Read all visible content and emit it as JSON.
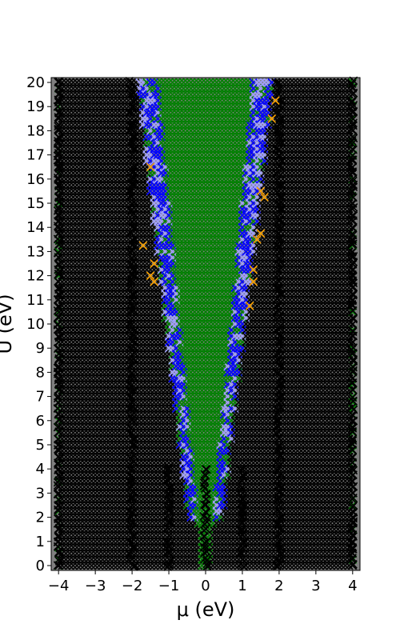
{
  "chart_data": {
    "type": "scatter",
    "xlabel": "μ (eV)",
    "ylabel": "U (eV)",
    "xlim": [
      -4.2,
      4.2
    ],
    "ylim": [
      -0.2,
      20.2
    ],
    "x_ticks": [
      -4,
      -3,
      -2,
      -1,
      0,
      1,
      2,
      3,
      4
    ],
    "y_ticks": [
      0,
      1,
      2,
      3,
      4,
      5,
      6,
      7,
      8,
      9,
      10,
      11,
      12,
      13,
      14,
      15,
      16,
      17,
      18,
      19,
      20
    ],
    "x_tick_labels": [
      "−4",
      "−3",
      "−2",
      "−1",
      "0",
      "1",
      "2",
      "3",
      "4"
    ],
    "y_tick_labels": [
      "0",
      "1",
      "2",
      "3",
      "4",
      "5",
      "6",
      "7",
      "8",
      "9",
      "10",
      "11",
      "12",
      "13",
      "14",
      "15",
      "16",
      "17",
      "18",
      "19",
      "20"
    ],
    "marker": "x",
    "grid": {
      "x_step": 0.1,
      "y_step": 0.25
    },
    "background_color": "#808080",
    "colors": {
      "black": "#000000",
      "blue": "#0000ff",
      "green": "#008000",
      "orange": "#ffa500",
      "light": "#a0a0ff"
    },
    "regions": {
      "green_band": {
        "U": [
          0,
          20
        ],
        "mu_center": 0.0,
        "half_width_at_U0": 0.1,
        "half_width_at_U20": 1.3
      },
      "blue_band": {
        "U": [
          2,
          20
        ],
        "width_at_U2": 0.25,
        "width_at_U20": 0.55
      },
      "black_outer_lines": {
        "mu": [
          -4.0,
          4.0
        ],
        "U": [
          0,
          20
        ]
      },
      "black_inner_lines": {
        "mu": [
          -2.0,
          2.0
        ],
        "U": [
          0,
          20
        ]
      },
      "black_center_lines": {
        "mu": [
          -1.0,
          0.0,
          1.0
        ],
        "U": [
          0,
          4
        ]
      },
      "orange_points": [
        {
          "mu": -1.5,
          "U": 16.5
        },
        {
          "mu": -1.4,
          "U": 12.5
        },
        {
          "mu": -1.5,
          "U": 12.0
        },
        {
          "mu": -1.4,
          "U": 11.75
        },
        {
          "mu": -1.7,
          "U": 13.25
        },
        {
          "mu": 1.6,
          "U": 15.25
        },
        {
          "mu": 1.5,
          "U": 15.5
        },
        {
          "mu": 1.5,
          "U": 13.75
        },
        {
          "mu": 1.4,
          "U": 13.5
        },
        {
          "mu": 1.3,
          "U": 12.25
        },
        {
          "mu": 1.3,
          "U": 11.75
        },
        {
          "mu": 1.2,
          "U": 10.75
        },
        {
          "mu": 1.8,
          "U": 18.5
        },
        {
          "mu": 1.9,
          "U": 19.25
        }
      ]
    }
  }
}
